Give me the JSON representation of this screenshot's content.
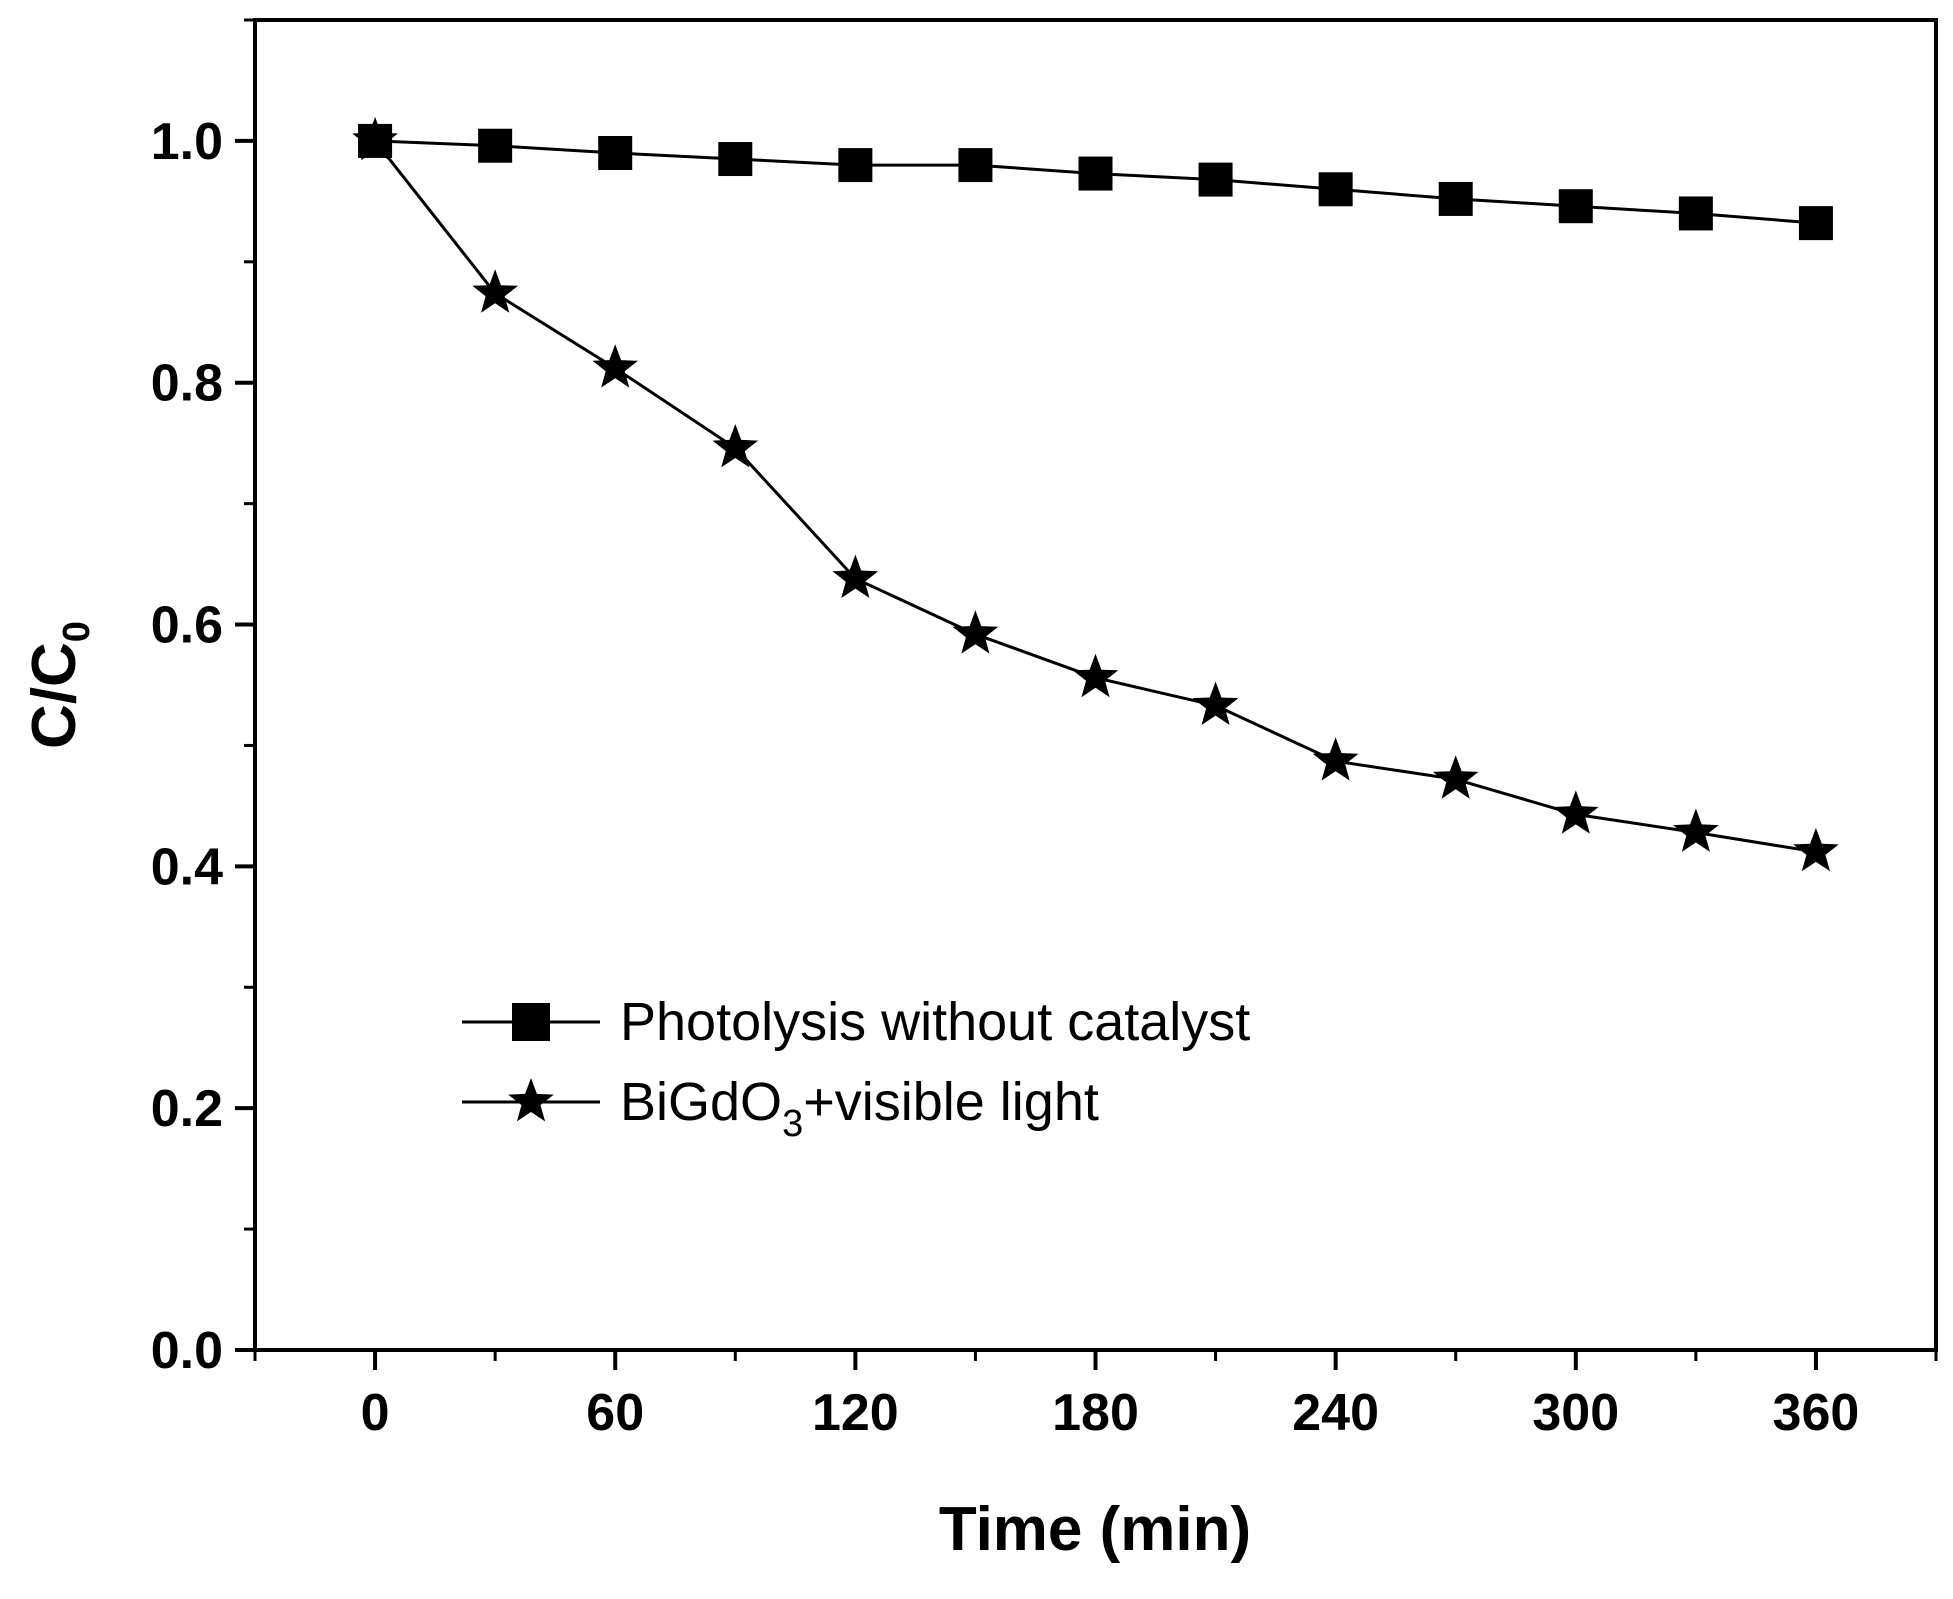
{
  "chart_data": {
    "type": "line",
    "xlabel": "Time (min)",
    "ylabel": {
      "main": "C/C",
      "sub": "0"
    },
    "xlim": [
      -30,
      390
    ],
    "ylim": [
      0,
      1.1
    ],
    "x_ticks": [
      0,
      60,
      120,
      180,
      240,
      300,
      360
    ],
    "x_tick_labels": [
      "0",
      "60",
      "120",
      "180",
      "240",
      "300",
      "360"
    ],
    "y_ticks": [
      0.0,
      0.2,
      0.4,
      0.6,
      0.8,
      1.0
    ],
    "y_tick_labels": [
      "0.0",
      "0.2",
      "0.4",
      "0.6",
      "0.8",
      "1.0"
    ],
    "grid": false,
    "legend_position": "lower-left",
    "x": [
      0,
      30,
      60,
      90,
      120,
      150,
      180,
      210,
      240,
      270,
      300,
      330,
      360
    ],
    "series": [
      {
        "name": "Photolysis without catalyst",
        "marker": "square",
        "values": [
          1.0,
          0.996,
          0.99,
          0.985,
          0.98,
          0.98,
          0.973,
          0.968,
          0.96,
          0.952,
          0.946,
          0.94,
          0.932
        ]
      },
      {
        "name": {
          "main": "BiGdO",
          "sub": "3",
          "rest": "+visible light"
        },
        "marker": "star",
        "values": [
          1.0,
          0.874,
          0.812,
          0.746,
          0.638,
          0.592,
          0.556,
          0.533,
          0.487,
          0.472,
          0.443,
          0.428,
          0.412
        ]
      }
    ],
    "colors": {
      "line": "#000000",
      "marker": "#000000"
    }
  }
}
